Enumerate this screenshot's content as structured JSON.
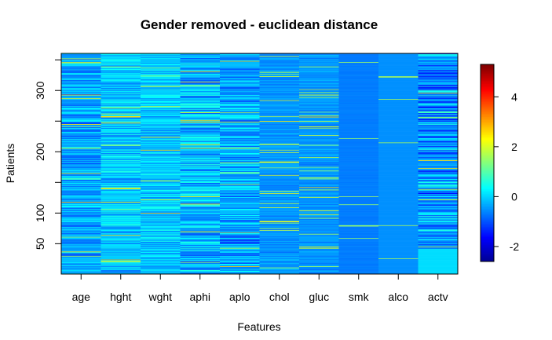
{
  "chart_data": {
    "type": "heatmap",
    "title": "Gender removed - euclidean distance",
    "xlabel": "Features",
    "ylabel": "Patients",
    "categories": [
      "age",
      "hght",
      "wght",
      "aphi",
      "aplo",
      "chol",
      "gluc",
      "smk",
      "alco",
      "actv"
    ],
    "y_range": [
      1,
      360
    ],
    "y_ticks": [
      50,
      100,
      200,
      300
    ],
    "y_minor_ticks": [
      50,
      100,
      150,
      200,
      250,
      300,
      350
    ],
    "color_scale": {
      "range": [
        -2.6,
        5.3
      ],
      "ticks": [
        -2,
        0,
        2,
        4
      ],
      "palette": [
        "#00008f",
        "#0000ff",
        "#0080ff",
        "#00ffff",
        "#80ff80",
        "#ffff00",
        "#ff8000",
        "#ff0000",
        "#800000"
      ]
    },
    "column_profiles": [
      {
        "name": "age",
        "base": -0.35,
        "spread": 0.75
      },
      {
        "name": "hght",
        "base": -0.05,
        "spread": 0.65
      },
      {
        "name": "wght",
        "base": -0.05,
        "spread": 0.6
      },
      {
        "name": "aphi",
        "base": -0.2,
        "spread": 0.9
      },
      {
        "name": "aplo",
        "base": -0.35,
        "spread": 0.8
      },
      {
        "name": "chol",
        "base": -0.45,
        "spread": 0.3
      },
      {
        "name": "gluc",
        "base": -0.45,
        "spread": 0.3
      },
      {
        "name": "smk",
        "base": -0.65,
        "spread": 0.05
      },
      {
        "name": "alco",
        "base": -0.5,
        "spread": 0.0
      },
      {
        "name": "actv",
        "base": -0.5,
        "spread": 1.1
      }
    ]
  }
}
